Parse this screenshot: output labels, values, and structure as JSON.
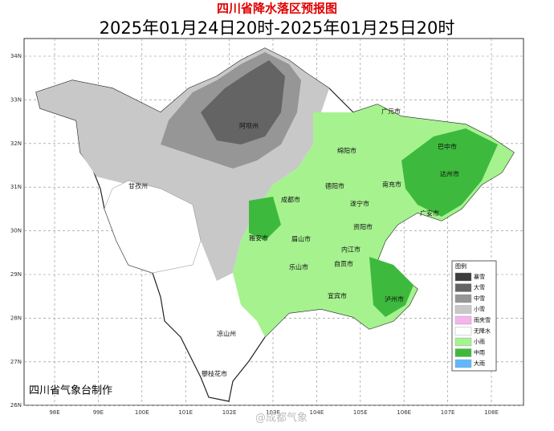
{
  "header": {
    "title": "四川省降水落区预报图",
    "subtitle": "2025年01月24日20时-2025年01月25日20时"
  },
  "axes": {
    "lat": [
      "34N",
      "33N",
      "32N",
      "31N",
      "30N",
      "29N",
      "28N",
      "27N",
      "26N"
    ],
    "lon": [
      "98E",
      "99E",
      "100E",
      "101E",
      "102E",
      "103E",
      "104E",
      "105E",
      "106E",
      "107E",
      "108E"
    ]
  },
  "cities": [
    "阿坝州",
    "广元市",
    "巴中市",
    "绵阳市",
    "达州市",
    "南充市",
    "德阳市",
    "甘孜州",
    "成都市",
    "遂宁市",
    "广安市",
    "资阳市",
    "雅安市",
    "眉山市",
    "内江市",
    "乐山市",
    "自贡市",
    "宜宾市",
    "泸州市",
    "凉山州",
    "攀枝花市"
  ],
  "legend": {
    "title": "图例",
    "items": [
      {
        "label": "暴雪",
        "color": "#3c3c3c"
      },
      {
        "label": "大雪",
        "color": "#646464"
      },
      {
        "label": "中雪",
        "color": "#969696"
      },
      {
        "label": "小雪",
        "color": "#c8c8c8"
      },
      {
        "label": "雨夹雪",
        "color": "#f5b4f0"
      },
      {
        "label": "无降水",
        "color": "#ffffff"
      },
      {
        "label": "小雨",
        "color": "#a6f28f"
      },
      {
        "label": "中雨",
        "color": "#3dba3d"
      },
      {
        "label": "大雨",
        "color": "#61b8ff"
      }
    ]
  },
  "footer": {
    "credit": "四川省气象台制作",
    "watermark": "@成都气象"
  }
}
